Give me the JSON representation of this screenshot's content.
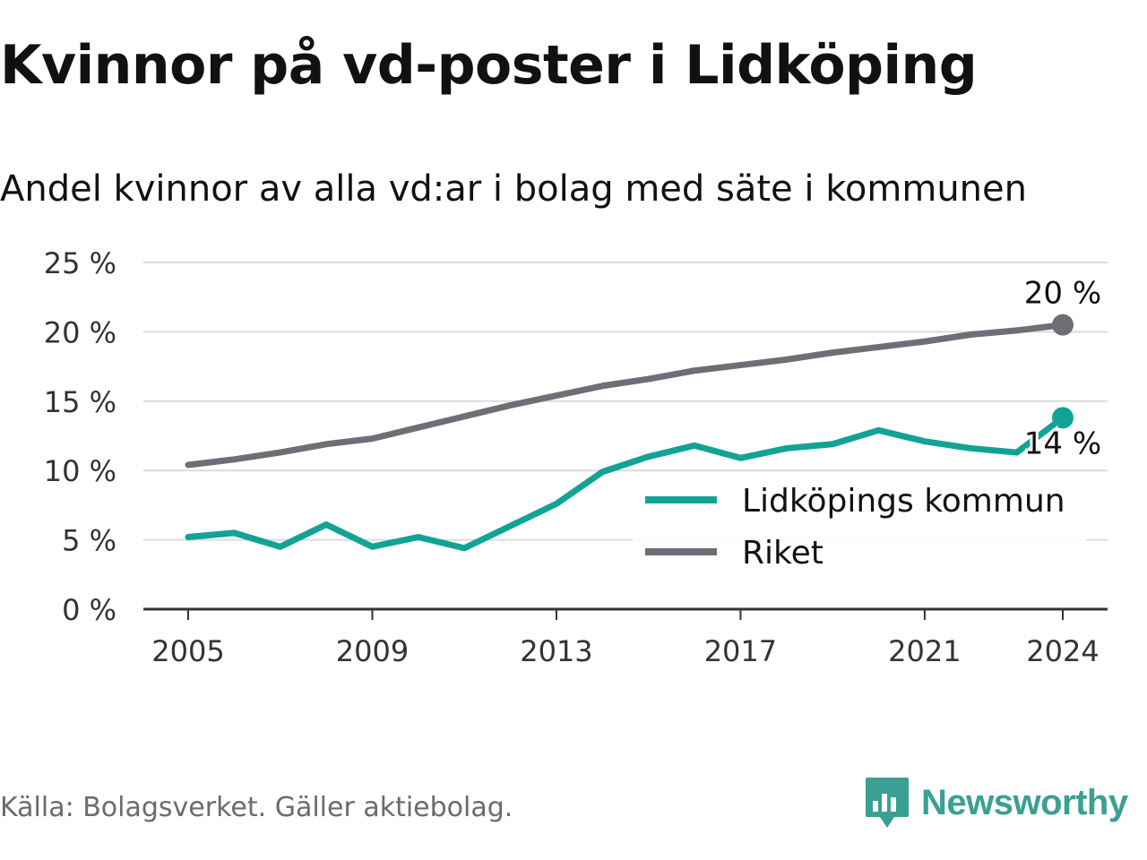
{
  "header": {
    "title": "Kvinnor på vd-poster i Lidköping",
    "subtitle": "Andel kvinnor av alla vd:ar i bolag med säte i kommunen"
  },
  "footer": {
    "source": "Källa: Bolagsverket. Gäller aktiebolag.",
    "brand": "Newsworthy",
    "brand_icon": "bar-chart-speech-bubble-icon",
    "brand_color": "#3aa093"
  },
  "chart_data": {
    "type": "line",
    "x": [
      2005,
      2006,
      2007,
      2008,
      2009,
      2010,
      2011,
      2012,
      2013,
      2014,
      2015,
      2016,
      2017,
      2018,
      2019,
      2020,
      2021,
      2022,
      2023,
      2024
    ],
    "x_ticks": [
      "2005",
      "2009",
      "2013",
      "2017",
      "2021",
      "2024"
    ],
    "y_ticks": [
      "0 %",
      "5 %",
      "10 %",
      "15 %",
      "20 %",
      "25 %"
    ],
    "ylim": [
      0,
      25
    ],
    "grid": true,
    "legend_position": "bottom-right",
    "series": [
      {
        "name": "Lidköpings kommun",
        "color": "#12a395",
        "values": [
          5.2,
          5.5,
          4.5,
          6.1,
          4.5,
          5.2,
          4.4,
          6.0,
          7.6,
          9.9,
          11.0,
          11.8,
          10.9,
          11.6,
          11.9,
          12.9,
          12.1,
          11.6,
          11.3,
          13.8
        ],
        "end_label": "14 %"
      },
      {
        "name": "Riket",
        "color": "#6e6e76",
        "values": [
          10.4,
          10.8,
          11.3,
          11.9,
          12.3,
          13.1,
          13.9,
          14.7,
          15.4,
          16.1,
          16.6,
          17.2,
          17.6,
          18.0,
          18.5,
          18.9,
          19.3,
          19.8,
          20.1,
          20.5
        ],
        "end_label": "20 %"
      }
    ]
  }
}
